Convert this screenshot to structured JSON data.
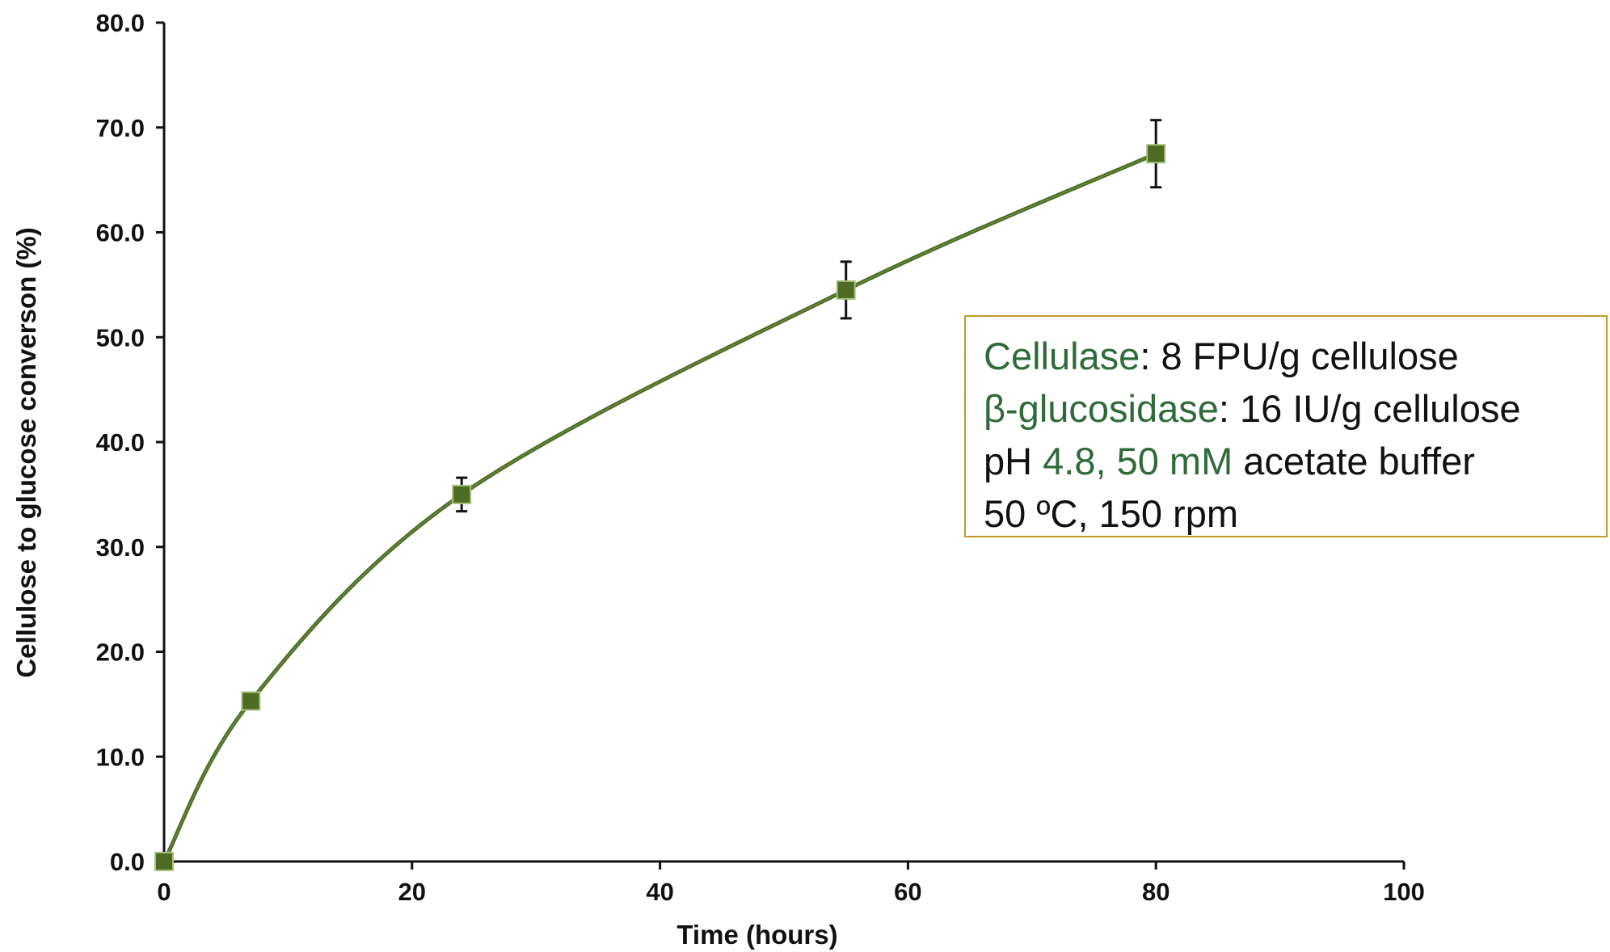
{
  "chart_data": {
    "type": "line",
    "xlabel": "Time (hours)",
    "ylabel": "Cellulose to glucose converson (%)",
    "xlim": [
      0,
      100
    ],
    "ylim": [
      0,
      80
    ],
    "x_ticks": [
      "0",
      "20",
      "40",
      "60",
      "80",
      "100"
    ],
    "y_ticks": [
      "0.0",
      "10.0",
      "20.0",
      "30.0",
      "40.0",
      "50.0",
      "60.0",
      "70.0",
      "80.0"
    ],
    "grid": false,
    "series": [
      {
        "x": [
          0,
          7,
          24,
          55,
          80
        ],
        "y": [
          0.0,
          15.3,
          35.0,
          54.5,
          67.5
        ],
        "error": [
          0.0,
          0.0,
          1.6,
          2.7,
          3.2
        ],
        "color": "#4d6b25"
      }
    ],
    "annotation": {
      "line1": {
        "key": "Cellulase",
        "rest": ": 8 FPU/g cellulose"
      },
      "line2": {
        "key": "β-glucosidase",
        "rest": ": 16 IU/g cellulose"
      },
      "line3": {
        "pre": "pH ",
        "key": "4.8, 50 mM",
        "rest": " acetate buffer"
      },
      "line4": {
        "text": "50 ºC, 150 rpm"
      },
      "highlight_color": "#2f6b3a",
      "border_color": "#c09a2a"
    }
  }
}
